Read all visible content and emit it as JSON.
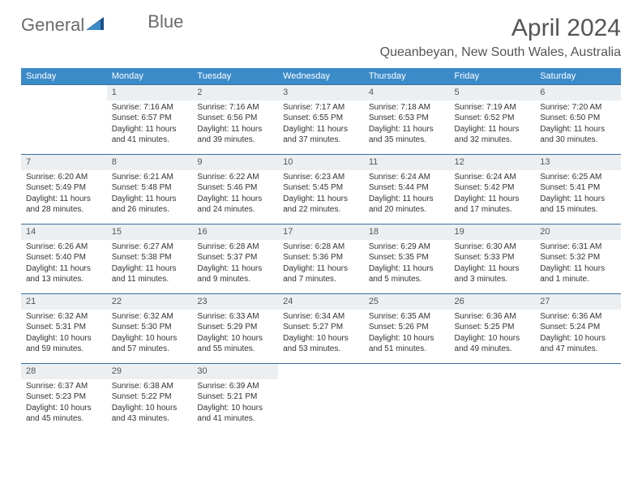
{
  "logo": {
    "word1": "General",
    "word2": "Blue"
  },
  "title": "April 2024",
  "location": "Queanbeyan, New South Wales, Australia",
  "colors": {
    "header_bg": "#3b8bc9",
    "header_text": "#ffffff",
    "daynum_bg": "#eceff1",
    "border": "#3b6fa0",
    "text": "#333333",
    "title_text": "#555555"
  },
  "weekdays": [
    "Sunday",
    "Monday",
    "Tuesday",
    "Wednesday",
    "Thursday",
    "Friday",
    "Saturday"
  ],
  "weeks": [
    [
      null,
      {
        "n": "1",
        "sunrise": "7:16 AM",
        "sunset": "6:57 PM",
        "daylight": "11 hours and 41 minutes."
      },
      {
        "n": "2",
        "sunrise": "7:16 AM",
        "sunset": "6:56 PM",
        "daylight": "11 hours and 39 minutes."
      },
      {
        "n": "3",
        "sunrise": "7:17 AM",
        "sunset": "6:55 PM",
        "daylight": "11 hours and 37 minutes."
      },
      {
        "n": "4",
        "sunrise": "7:18 AM",
        "sunset": "6:53 PM",
        "daylight": "11 hours and 35 minutes."
      },
      {
        "n": "5",
        "sunrise": "7:19 AM",
        "sunset": "6:52 PM",
        "daylight": "11 hours and 32 minutes."
      },
      {
        "n": "6",
        "sunrise": "7:20 AM",
        "sunset": "6:50 PM",
        "daylight": "11 hours and 30 minutes."
      }
    ],
    [
      {
        "n": "7",
        "sunrise": "6:20 AM",
        "sunset": "5:49 PM",
        "daylight": "11 hours and 28 minutes."
      },
      {
        "n": "8",
        "sunrise": "6:21 AM",
        "sunset": "5:48 PM",
        "daylight": "11 hours and 26 minutes."
      },
      {
        "n": "9",
        "sunrise": "6:22 AM",
        "sunset": "5:46 PM",
        "daylight": "11 hours and 24 minutes."
      },
      {
        "n": "10",
        "sunrise": "6:23 AM",
        "sunset": "5:45 PM",
        "daylight": "11 hours and 22 minutes."
      },
      {
        "n": "11",
        "sunrise": "6:24 AM",
        "sunset": "5:44 PM",
        "daylight": "11 hours and 20 minutes."
      },
      {
        "n": "12",
        "sunrise": "6:24 AM",
        "sunset": "5:42 PM",
        "daylight": "11 hours and 17 minutes."
      },
      {
        "n": "13",
        "sunrise": "6:25 AM",
        "sunset": "5:41 PM",
        "daylight": "11 hours and 15 minutes."
      }
    ],
    [
      {
        "n": "14",
        "sunrise": "6:26 AM",
        "sunset": "5:40 PM",
        "daylight": "11 hours and 13 minutes."
      },
      {
        "n": "15",
        "sunrise": "6:27 AM",
        "sunset": "5:38 PM",
        "daylight": "11 hours and 11 minutes."
      },
      {
        "n": "16",
        "sunrise": "6:28 AM",
        "sunset": "5:37 PM",
        "daylight": "11 hours and 9 minutes."
      },
      {
        "n": "17",
        "sunrise": "6:28 AM",
        "sunset": "5:36 PM",
        "daylight": "11 hours and 7 minutes."
      },
      {
        "n": "18",
        "sunrise": "6:29 AM",
        "sunset": "5:35 PM",
        "daylight": "11 hours and 5 minutes."
      },
      {
        "n": "19",
        "sunrise": "6:30 AM",
        "sunset": "5:33 PM",
        "daylight": "11 hours and 3 minutes."
      },
      {
        "n": "20",
        "sunrise": "6:31 AM",
        "sunset": "5:32 PM",
        "daylight": "11 hours and 1 minute."
      }
    ],
    [
      {
        "n": "21",
        "sunrise": "6:32 AM",
        "sunset": "5:31 PM",
        "daylight": "10 hours and 59 minutes."
      },
      {
        "n": "22",
        "sunrise": "6:32 AM",
        "sunset": "5:30 PM",
        "daylight": "10 hours and 57 minutes."
      },
      {
        "n": "23",
        "sunrise": "6:33 AM",
        "sunset": "5:29 PM",
        "daylight": "10 hours and 55 minutes."
      },
      {
        "n": "24",
        "sunrise": "6:34 AM",
        "sunset": "5:27 PM",
        "daylight": "10 hours and 53 minutes."
      },
      {
        "n": "25",
        "sunrise": "6:35 AM",
        "sunset": "5:26 PM",
        "daylight": "10 hours and 51 minutes."
      },
      {
        "n": "26",
        "sunrise": "6:36 AM",
        "sunset": "5:25 PM",
        "daylight": "10 hours and 49 minutes."
      },
      {
        "n": "27",
        "sunrise": "6:36 AM",
        "sunset": "5:24 PM",
        "daylight": "10 hours and 47 minutes."
      }
    ],
    [
      {
        "n": "28",
        "sunrise": "6:37 AM",
        "sunset": "5:23 PM",
        "daylight": "10 hours and 45 minutes."
      },
      {
        "n": "29",
        "sunrise": "6:38 AM",
        "sunset": "5:22 PM",
        "daylight": "10 hours and 43 minutes."
      },
      {
        "n": "30",
        "sunrise": "6:39 AM",
        "sunset": "5:21 PM",
        "daylight": "10 hours and 41 minutes."
      },
      null,
      null,
      null,
      null
    ]
  ],
  "labels": {
    "sunrise": "Sunrise:",
    "sunset": "Sunset:",
    "daylight": "Daylight:"
  }
}
